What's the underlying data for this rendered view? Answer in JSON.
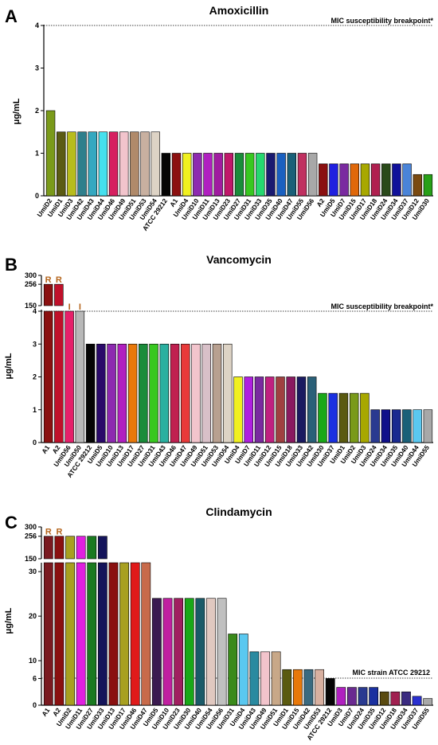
{
  "chart_data": [
    {
      "type": "bar",
      "panel_label": "A",
      "title": "Amoxicillin",
      "ylabel": "μg/mL",
      "yticks": [
        "0",
        "1",
        "2",
        "3",
        "4"
      ],
      "ylim": [
        0,
        4
      ],
      "breakpoint": {
        "label": "MIC susceptibility breakpoint*",
        "value": 4
      },
      "categories": [
        "UmiD2",
        "UmiD1",
        "UmiD3",
        "UmiD42",
        "UmiD43",
        "UmiD44",
        "UmiD46",
        "UmiD49",
        "UmiD51",
        "UmiD53",
        "UmiD54",
        "ATCC 29212",
        "A1",
        "UmiD4",
        "UmiD10",
        "UmiD11",
        "UmiD13",
        "UmiD23",
        "UmiD27",
        "UmiD31",
        "UmiD33",
        "UmiD35",
        "UmiD40",
        "UmiD47",
        "UmiD55",
        "UmiD56",
        "A2",
        "UmiD5",
        "UmiD7",
        "UmiD15",
        "UmiD17",
        "UmiD18",
        "UmiD24",
        "UmiD34",
        "UmiD37",
        "UmiD12",
        "UmiD30"
      ],
      "values": [
        2,
        1.5,
        1.5,
        1.5,
        1.5,
        1.5,
        1.5,
        1.5,
        1.5,
        1.5,
        1.5,
        1,
        1,
        1,
        1,
        1,
        1,
        1,
        1,
        1,
        1,
        1,
        1,
        1,
        1,
        1,
        0.75,
        0.75,
        0.75,
        0.75,
        0.75,
        0.75,
        0.75,
        0.75,
        0.75,
        0.5,
        0.5
      ],
      "colors": [
        "#7a9a1a",
        "#5b5b14",
        "#b8bc1c",
        "#2f7f8c",
        "#35a8c0",
        "#45e0ee",
        "#d62060",
        "#f2c4cc",
        "#b08a6a",
        "#c8b0a0",
        "#ddd3c5",
        "#050505",
        "#8c1010",
        "#f0f020",
        "#8d2ab0",
        "#b020c0",
        "#a01ca0",
        "#c0186a",
        "#1a8c3a",
        "#38c820",
        "#26d870",
        "#1a1a70",
        "#1a60c0",
        "#1a6078",
        "#c03060",
        "#a8a8a8",
        "#8a1010",
        "#2020e0",
        "#7a2aa0",
        "#e0680a",
        "#a8a800",
        "#b02050",
        "#2a4a1a",
        "#10109a",
        "#4a84d8",
        "#7a4a10",
        "#28a018"
      ],
      "xlabels_color": "#000000"
    },
    {
      "type": "bar",
      "panel_label": "B",
      "title": "Vancomycin",
      "ylabel": "μg/mL",
      "yticks_lower": [
        "0",
        "1",
        "2",
        "3",
        "4"
      ],
      "yticks_upper": [
        "150",
        "256",
        "300"
      ],
      "breakpoint": {
        "label": "MIC susceptibility breakpoint*",
        "value": 4
      },
      "categories": [
        "A1",
        "A2",
        "UmiD56",
        "UmiD50",
        "ATCC 29212",
        "UmiD5",
        "UmiD10",
        "UmiD13",
        "UmiD17",
        "UmiD27",
        "UmiD31",
        "UmiD43",
        "UmiD46",
        "UmiD47",
        "UmiD49",
        "UmiD51",
        "UmiD53",
        "UmiD54",
        "UmiD4",
        "UmiD7",
        "UmiD11",
        "UmiD12",
        "UmiD15",
        "UmiD18",
        "UmiD33",
        "UmiD42",
        "UmiD30",
        "UmiD37",
        "UmiD1",
        "UmiD2",
        "UmiD3",
        "UmiD24",
        "UmiD34",
        "UmiD35",
        "UmiD40",
        "UmiD44",
        "UmiD55"
      ],
      "values": [
        256,
        256,
        4,
        4,
        3,
        3,
        3,
        3,
        3,
        3,
        3,
        3,
        3,
        3,
        3,
        3,
        3,
        3,
        2,
        2,
        2,
        2,
        2,
        2,
        2,
        2,
        1.5,
        1.5,
        1.5,
        1.5,
        1.5,
        1,
        1,
        1,
        1,
        1,
        1
      ],
      "annotations": [
        "R",
        "R",
        "I",
        "I"
      ],
      "colors": [
        "#8a1010",
        "#c0102a",
        "#e6206a",
        "#b8b8b8",
        "#050505",
        "#2a0a6a",
        "#8d2ab0",
        "#b020c0",
        "#e8780a",
        "#1a8c3a",
        "#38c820",
        "#2ab0a0",
        "#c02050",
        "#e83a3a",
        "#f2c4cc",
        "#d8c0c8",
        "#b8a090",
        "#ddd3c5",
        "#f0f020",
        "#b020e0",
        "#7a2aa0",
        "#c02080",
        "#a04040",
        "#8a1a60",
        "#1a1a60",
        "#2a6078",
        "#1aa818",
        "#1a30e0",
        "#5a5a10",
        "#7a9a1a",
        "#a8a800",
        "#2a3a90",
        "#10108a",
        "#1a2a90",
        "#1a6078",
        "#5ac8f0",
        "#a8a8a8"
      ]
    },
    {
      "type": "bar",
      "panel_label": "C",
      "title": "Clindamycin",
      "ylabel": "μg/mL",
      "yticks_lower": [
        "0",
        "6",
        "10",
        "20",
        "30"
      ],
      "yticks_upper": [
        "150",
        "256",
        "300"
      ],
      "breakpoint": {
        "label": "MIC strain ATCC 29212",
        "value": 6
      },
      "categories": [
        "A1",
        "A2",
        "UmiD2",
        "UmiD11",
        "UmiD27",
        "UmiD33",
        "UmiD13",
        "UmiD17",
        "UmiD46",
        "UmiD47",
        "UmiD5",
        "UmiD10",
        "UmiD23",
        "UmiD30",
        "UmiD40",
        "UmiD54",
        "UmiD56",
        "UmiD31",
        "UmiD4",
        "UmiD43",
        "UmiD49",
        "UmiD51",
        "UmiD1",
        "UmiD15",
        "UmiD42",
        "UmiD53",
        "ATCC 29212",
        "UmiD3",
        "UmiD7",
        "UmiD24",
        "UmiD35",
        "UmiD12",
        "UmiD18",
        "UmiD34",
        "UmiD37",
        "UmiD55"
      ],
      "values": [
        256,
        256,
        256,
        256,
        256,
        256,
        32,
        32,
        32,
        32,
        24,
        24,
        24,
        24,
        24,
        24,
        24,
        16,
        16,
        12,
        12,
        12,
        8,
        8,
        8,
        8,
        6,
        4,
        4,
        4,
        4,
        3,
        3,
        3,
        2,
        1.5
      ],
      "annotations": [
        "R",
        "R"
      ],
      "colors": [
        "#7a1a20",
        "#8a1010",
        "#a8a020",
        "#e020e0",
        "#1a7a20",
        "#14145a",
        "#8a1010",
        "#a8a020",
        "#e01a1a",
        "#c86a4a",
        "#3a1a50",
        "#c020a0",
        "#a02060",
        "#1aa818",
        "#1a5a68",
        "#e0c8c0",
        "#c0c0c0",
        "#3a8a1a",
        "#5ac8f0",
        "#2a8aa0",
        "#f2c4cc",
        "#c8a888",
        "#5a5a10",
        "#e8780a",
        "#3a6a80",
        "#d8b0a0",
        "#050505",
        "#b020c0",
        "#6a2a90",
        "#2a3a90",
        "#1a30a0",
        "#5a4a10",
        "#a02050",
        "#3a2a80",
        "#2a30d0",
        "#a8a8a8"
      ]
    }
  ]
}
